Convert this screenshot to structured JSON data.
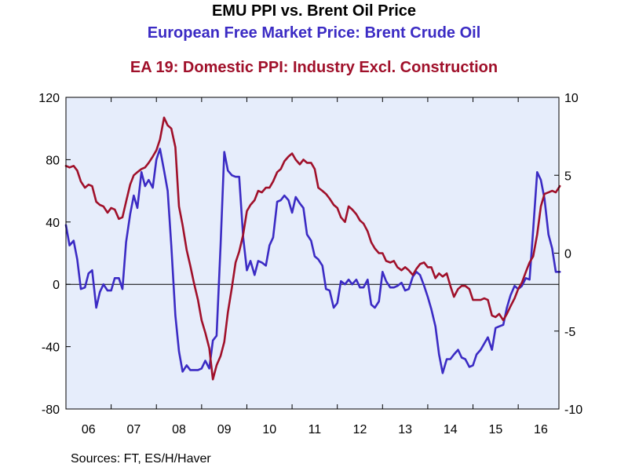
{
  "chart_data": {
    "type": "line",
    "title": "EMU PPI vs. Brent Oil Price",
    "subtitles": [
      "European Free Market Price: Brent Crude Oil",
      "EA 19: Domestic PPI: Industry Excl. Construction"
    ],
    "source": "Sources:  FT, ES/H/Haver",
    "x_tick_labels": [
      "06",
      "07",
      "08",
      "09",
      "10",
      "11",
      "12",
      "13",
      "14",
      "15",
      "16"
    ],
    "x_range": [
      2006.0,
      2016.9
    ],
    "left_axis": {
      "ylim": [
        -80,
        120
      ],
      "ticks": [
        "-80",
        "-40",
        "0",
        "40",
        "80",
        "120"
      ]
    },
    "right_axis": {
      "ylim": [
        -10,
        10
      ],
      "ticks": [
        "-10",
        "-5",
        "0",
        "5",
        "10"
      ]
    },
    "zero_line": true,
    "grid": false,
    "colors": {
      "plot_bg": "#e6edfb",
      "brent": "#3b2bc4",
      "ppi": "#a0102a"
    },
    "series": [
      {
        "name": "European Free Market Price: Brent Crude Oil",
        "axis": "left",
        "color": "#3b2bc4",
        "x": [
          2006.0,
          2006.08,
          2006.17,
          2006.25,
          2006.33,
          2006.42,
          2006.5,
          2006.58,
          2006.67,
          2006.75,
          2006.83,
          2006.92,
          2007.0,
          2007.08,
          2007.17,
          2007.25,
          2007.33,
          2007.42,
          2007.5,
          2007.58,
          2007.67,
          2007.75,
          2007.83,
          2007.92,
          2008.0,
          2008.08,
          2008.17,
          2008.25,
          2008.33,
          2008.42,
          2008.5,
          2008.58,
          2008.67,
          2008.75,
          2008.83,
          2008.92,
          2009.0,
          2009.08,
          2009.17,
          2009.25,
          2009.33,
          2009.42,
          2009.5,
          2009.58,
          2009.67,
          2009.75,
          2009.83,
          2009.92,
          2010.0,
          2010.08,
          2010.17,
          2010.25,
          2010.33,
          2010.42,
          2010.5,
          2010.58,
          2010.67,
          2010.75,
          2010.83,
          2010.92,
          2011.0,
          2011.08,
          2011.17,
          2011.25,
          2011.33,
          2011.42,
          2011.5,
          2011.58,
          2011.67,
          2011.75,
          2011.83,
          2011.92,
          2012.0,
          2012.08,
          2012.17,
          2012.25,
          2012.33,
          2012.42,
          2012.5,
          2012.58,
          2012.67,
          2012.75,
          2012.83,
          2012.92,
          2013.0,
          2013.08,
          2013.17,
          2013.25,
          2013.33,
          2013.42,
          2013.5,
          2013.58,
          2013.67,
          2013.75,
          2013.83,
          2013.92,
          2014.0,
          2014.08,
          2014.17,
          2014.25,
          2014.33,
          2014.42,
          2014.5,
          2014.58,
          2014.67,
          2014.75,
          2014.83,
          2014.92,
          2015.0,
          2015.08,
          2015.17,
          2015.25,
          2015.33,
          2015.42,
          2015.5,
          2015.58,
          2015.67,
          2015.75,
          2015.83,
          2015.92,
          2016.0,
          2016.08,
          2016.17,
          2016.25,
          2016.33,
          2016.42,
          2016.5,
          2016.58,
          2016.67,
          2016.75,
          2016.83,
          2016.92
        ],
        "y": [
          38,
          25,
          28,
          16,
          -3,
          -2,
          7,
          9,
          -15,
          -5,
          0,
          -4,
          -4,
          4,
          4,
          -3,
          27,
          45,
          57,
          49,
          72,
          63,
          67,
          62,
          80,
          87,
          73,
          60,
          25,
          -20,
          -43,
          -56,
          -52,
          -55,
          -55,
          -55,
          -54,
          -49,
          -54,
          -36,
          -33,
          25,
          85,
          73,
          70,
          69,
          69,
          30,
          9,
          15,
          6,
          15,
          14,
          12,
          25,
          30,
          53,
          54,
          57,
          54,
          46,
          56,
          52,
          49,
          32,
          28,
          18,
          16,
          12,
          -3,
          -4,
          -15,
          -12,
          2,
          0,
          3,
          0,
          3,
          -2,
          -2,
          3,
          -13,
          -15,
          -11,
          8,
          2,
          -2,
          -2,
          -1,
          1,
          -4,
          -3,
          5,
          8,
          6,
          -1,
          -8,
          -16,
          -27,
          -45,
          -57,
          -48,
          -48,
          -45,
          -42,
          -47,
          -48,
          -53,
          -52,
          -45,
          -42,
          -38,
          -34,
          -42,
          -28,
          -27,
          -26,
          -15,
          -7,
          -1,
          -3,
          -1,
          4,
          3,
          35,
          72,
          67,
          55,
          32,
          23,
          8,
          8
        ]
      },
      {
        "name": "EA 19: Domestic PPI: Industry Excl. Construction",
        "axis": "right",
        "color": "#a0102a",
        "x": [
          2006.0,
          2006.08,
          2006.17,
          2006.25,
          2006.33,
          2006.42,
          2006.5,
          2006.58,
          2006.67,
          2006.75,
          2006.83,
          2006.92,
          2007.0,
          2007.08,
          2007.17,
          2007.25,
          2007.33,
          2007.42,
          2007.5,
          2007.58,
          2007.67,
          2007.75,
          2007.83,
          2007.92,
          2008.0,
          2008.08,
          2008.17,
          2008.25,
          2008.33,
          2008.42,
          2008.5,
          2008.58,
          2008.67,
          2008.75,
          2008.83,
          2008.92,
          2009.0,
          2009.08,
          2009.17,
          2009.25,
          2009.33,
          2009.42,
          2009.5,
          2009.58,
          2009.67,
          2009.75,
          2009.83,
          2009.92,
          2010.0,
          2010.08,
          2010.17,
          2010.25,
          2010.33,
          2010.42,
          2010.5,
          2010.58,
          2010.67,
          2010.75,
          2010.83,
          2010.92,
          2011.0,
          2011.08,
          2011.17,
          2011.25,
          2011.33,
          2011.42,
          2011.5,
          2011.58,
          2011.67,
          2011.75,
          2011.83,
          2011.92,
          2012.0,
          2012.08,
          2012.17,
          2012.25,
          2012.33,
          2012.42,
          2012.5,
          2012.58,
          2012.67,
          2012.75,
          2012.83,
          2012.92,
          2013.0,
          2013.08,
          2013.17,
          2013.25,
          2013.33,
          2013.42,
          2013.5,
          2013.58,
          2013.67,
          2013.75,
          2013.83,
          2013.92,
          2014.0,
          2014.08,
          2014.17,
          2014.25,
          2014.33,
          2014.42,
          2014.5,
          2014.58,
          2014.67,
          2014.75,
          2014.83,
          2014.92,
          2015.0,
          2015.08,
          2015.17,
          2015.25,
          2015.33,
          2015.42,
          2015.5,
          2015.58,
          2015.67,
          2015.75,
          2015.83,
          2015.92,
          2016.0,
          2016.08,
          2016.17,
          2016.25,
          2016.33,
          2016.42,
          2016.5,
          2016.58,
          2016.67,
          2016.75,
          2016.83,
          2016.92
        ],
        "y": [
          5.6,
          5.5,
          5.6,
          5.3,
          4.6,
          4.2,
          4.4,
          4.3,
          3.3,
          3.1,
          3.0,
          2.6,
          2.9,
          2.8,
          2.2,
          2.3,
          3.3,
          4.4,
          5.0,
          5.2,
          5.4,
          5.5,
          5.8,
          6.2,
          6.6,
          7.3,
          8.7,
          8.2,
          8.0,
          6.8,
          3.0,
          1.8,
          0.2,
          -0.8,
          -1.9,
          -3.0,
          -4.3,
          -5.1,
          -6.1,
          -8.1,
          -7.2,
          -6.6,
          -5.7,
          -3.8,
          -2.2,
          -0.6,
          0.1,
          1.2,
          2.7,
          3.1,
          3.4,
          4.0,
          3.9,
          4.2,
          4.2,
          4.6,
          5.2,
          5.4,
          5.9,
          6.2,
          6.4,
          6.0,
          5.7,
          6.0,
          5.8,
          5.8,
          5.4,
          4.2,
          4.0,
          3.8,
          3.5,
          3.1,
          2.9,
          2.3,
          2.0,
          3.0,
          2.8,
          2.5,
          2.1,
          1.9,
          1.4,
          0.7,
          0.3,
          0.0,
          0.0,
          -0.5,
          -0.6,
          -0.5,
          -0.9,
          -1.1,
          -0.9,
          -1.1,
          -1.4,
          -1.0,
          -0.7,
          -0.6,
          -0.9,
          -0.9,
          -1.6,
          -1.3,
          -1.5,
          -1.3,
          -2.1,
          -2.8,
          -2.3,
          -2.1,
          -2.1,
          -2.3,
          -3.0,
          -3.0,
          -3.0,
          -2.9,
          -3.0,
          -4.0,
          -4.1,
          -3.9,
          -4.3,
          -3.9,
          -3.4,
          -2.9,
          -2.3,
          -1.9,
          -1.2,
          -0.6,
          -0.2,
          1.2,
          3.0,
          3.8,
          3.9,
          4.0,
          3.9,
          4.3
        ]
      }
    ]
  }
}
